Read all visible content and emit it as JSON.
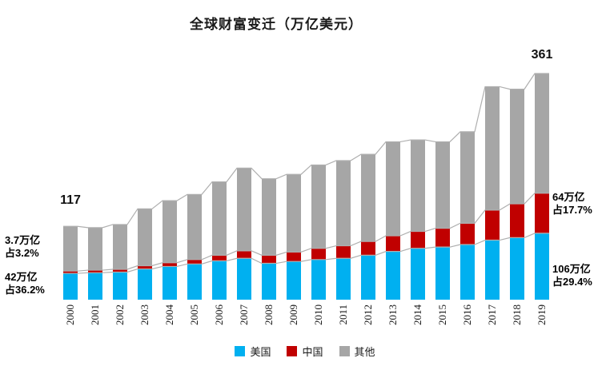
{
  "title": "全球财富变迁（万亿美元）",
  "annotations": {
    "total_2000": "117",
    "total_2019": "361",
    "left_china": {
      "line1": "3.7万亿",
      "line2": "占3.2%"
    },
    "left_us": {
      "line1": "42万亿",
      "line2": "占36.2%"
    },
    "right_china": {
      "line1": "64万亿",
      "line2": "占17.7%"
    },
    "right_us": {
      "line1": "106万亿",
      "line2": "占29.4%"
    }
  },
  "colors": {
    "us": "#00B0F0",
    "china": "#C00000",
    "others": "#A6A6A6",
    "connector": "#AFAFAF"
  },
  "chart_data": {
    "type": "bar",
    "stacked": true,
    "title": "全球财富变迁（万亿美元）",
    "categories": [
      "2000",
      "2001",
      "2002",
      "2003",
      "2004",
      "2005",
      "2006",
      "2007",
      "2008",
      "2009",
      "2010",
      "2011",
      "2012",
      "2013",
      "2014",
      "2015",
      "2016",
      "2017",
      "2018",
      "2019"
    ],
    "series": [
      {
        "name": "美国",
        "key": "us",
        "color": "#00B0F0",
        "values": [
          42,
          43,
          44,
          49,
          53,
          57,
          62,
          66,
          58,
          61,
          64,
          66,
          71,
          77,
          82,
          84,
          88,
          95,
          99,
          106
        ]
      },
      {
        "name": "中国",
        "key": "china",
        "color": "#C00000",
        "values": [
          3.7,
          4.1,
          4.5,
          5.2,
          6,
          7,
          9,
          12,
          13,
          15,
          18,
          20,
          22,
          25,
          27,
          30,
          34,
          48,
          54,
          64
        ]
      },
      {
        "name": "其他",
        "key": "others",
        "color": "#A6A6A6",
        "values": [
          71.3,
          67.9,
          71.5,
          90.8,
          99,
          104,
          117,
          132,
          122,
          124,
          133,
          136,
          139,
          150,
          146,
          138,
          146,
          197,
          183,
          191
        ]
      }
    ],
    "totals": [
      117,
      115,
      120,
      145,
      158,
      168,
      188,
      210,
      193,
      200,
      215,
      222,
      232,
      252,
      255,
      252,
      268,
      340,
      336,
      361
    ],
    "ylim": [
      0,
      370
    ],
    "grid": false,
    "legend_position": "bottom",
    "notes": {
      "first_bar_total_label": "117",
      "last_bar_total_label": "361",
      "china_2000": "3.7万亿 占3.2%",
      "us_2000": "42万亿 占36.2%",
      "china_2019": "64万亿 占17.7%",
      "us_2019": "106万亿 占29.4%"
    }
  }
}
